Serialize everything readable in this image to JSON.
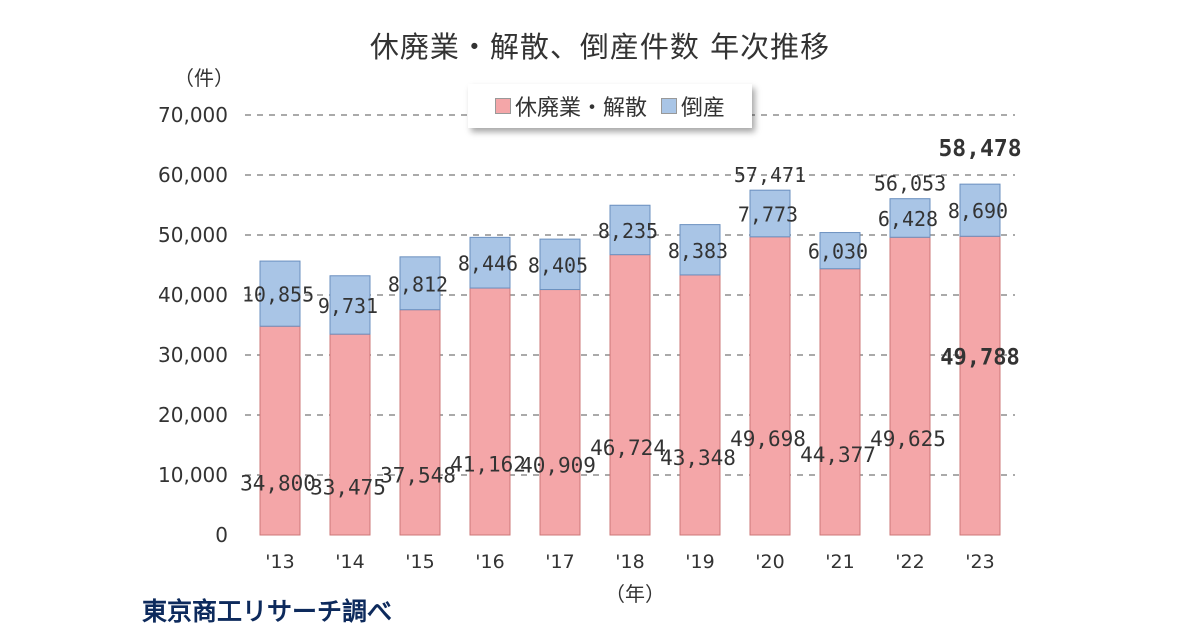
{
  "title": "休廃業・解散、倒産件数 年次推移",
  "y_unit": "（件）",
  "x_unit": "（年）",
  "source": "東京商工リサーチ調べ",
  "colors": {
    "kyuhaigyo": "#f4a6a8",
    "tosan": "#a9c5e6",
    "grid": "#555555"
  },
  "chart_data": {
    "type": "bar",
    "stacked": true,
    "categories": [
      "'13",
      "'14",
      "'15",
      "'16",
      "'17",
      "'18",
      "'19",
      "'20",
      "'21",
      "'22",
      "'23"
    ],
    "series": [
      {
        "name": "休廃業・解散",
        "values": [
          34800,
          33475,
          37548,
          41162,
          40909,
          46724,
          43348,
          49698,
          44377,
          49625,
          49788
        ],
        "labels": [
          "34,800",
          "33,475",
          "37,548",
          "41,162",
          "40,909",
          "46,724",
          "43,348",
          "49,698",
          "44,377",
          "49,625",
          "49,788"
        ]
      },
      {
        "name": "倒産",
        "values": [
          10855,
          9731,
          8812,
          8446,
          8405,
          8235,
          8383,
          7773,
          6030,
          6428,
          8690
        ],
        "labels": [
          "10,855",
          "9,731",
          "8,812",
          "8,446",
          "8,405",
          "8,235",
          "8,383",
          "7,773",
          "6,030",
          "6,428",
          "8,690"
        ]
      }
    ],
    "totals": [
      {
        "category": "'20",
        "value": 57471,
        "label": "57,471"
      },
      {
        "category": "'22",
        "value": 56053,
        "label": "56,053"
      },
      {
        "category": "'23",
        "value": 58478,
        "label": "58,478"
      }
    ],
    "ylim": [
      0,
      70000
    ],
    "yticks": [
      0,
      10000,
      20000,
      30000,
      40000,
      50000,
      60000,
      70000
    ],
    "ytick_labels": [
      "0",
      "10,000",
      "20,000",
      "30,000",
      "40,000",
      "50,000",
      "60,000",
      "70,000"
    ],
    "grid": true,
    "legend": "top-center"
  }
}
